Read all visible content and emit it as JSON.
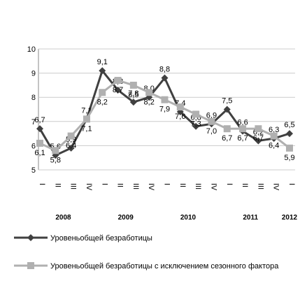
{
  "chart_data": {
    "type": "line",
    "categories": [
      "I",
      "II",
      "III",
      "IV",
      "I",
      "II",
      "III",
      "IV",
      "I",
      "II",
      "III",
      "IV",
      "I",
      "II",
      "III",
      "IV",
      "I"
    ],
    "years": [
      "2008",
      "2009",
      "2010",
      "2011",
      "2012"
    ],
    "series": [
      {
        "name": "Уровеньобщей безработицы",
        "color": "#404040",
        "marker": "diamond",
        "values": [
          6.7,
          5.6,
          5.9,
          7.1,
          9.1,
          8.3,
          7.8,
          8.0,
          8.8,
          7.4,
          6.8,
          6.9,
          7.5,
          6.6,
          6.2,
          6.3,
          6.5
        ],
        "value_labels": [
          "6,7",
          "5,6",
          "5,9",
          "7,1",
          "9,1",
          "8,3",
          "7,8",
          "8,0",
          "8,8",
          "7,4",
          "6,8",
          "6,9",
          "7,5",
          "6,6",
          "6,2",
          "6,3",
          "6,5"
        ]
      },
      {
        "name": "Уровеньобщей безработицы с исключением сезонного фактора",
        "color": "#b0b0b0",
        "marker": "square",
        "values": [
          6.1,
          5.8,
          6.4,
          7.1,
          8.2,
          8.7,
          8.5,
          8.2,
          7.9,
          7.6,
          7.3,
          7.0,
          6.7,
          6.7,
          6.7,
          6.4,
          5.9
        ],
        "value_labels": [
          "6,1",
          "5,8",
          "6,4",
          "7,1",
          "8,2",
          "8,7",
          "8,5",
          "8,2",
          "7,9",
          "7,6",
          "7,3",
          "7,0",
          "6,7",
          "6,7",
          "6,7",
          "6,4",
          "5,9"
        ]
      }
    ],
    "ylim": [
      5,
      10
    ],
    "yticks": [
      5,
      6,
      7,
      8,
      9,
      10
    ],
    "grid": true
  }
}
